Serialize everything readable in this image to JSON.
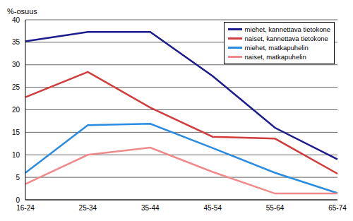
{
  "chart_data": {
    "type": "line",
    "y_label": "%-osuus",
    "categories": [
      "16-24",
      "25-34",
      "35-44",
      "45-54",
      "55-64",
      "65-74"
    ],
    "series": [
      {
        "name": "miehet, kannettava tietokone",
        "color": "#1c1c8e",
        "values": [
          35.2,
          37.3,
          37.3,
          27.5,
          16,
          9
        ]
      },
      {
        "name": "naiset, kannettava tietokone",
        "color": "#d23c3c",
        "values": [
          22.8,
          28.4,
          20.5,
          14,
          13.6,
          5.8
        ]
      },
      {
        "name": "miehet, matkapuhelin",
        "color": "#2a8ce0",
        "values": [
          6,
          16.6,
          16.9,
          11.5,
          6,
          1.5
        ]
      },
      {
        "name": "naiset, matkapuhelin",
        "color": "#f08a8a",
        "values": [
          3.5,
          10,
          11.6,
          6.2,
          1.4,
          1.4
        ]
      }
    ],
    "ylim": [
      0,
      40
    ],
    "yticks": [
      0,
      5,
      10,
      15,
      20,
      25,
      30,
      35,
      40
    ],
    "grid": true,
    "legend": "top-right"
  }
}
